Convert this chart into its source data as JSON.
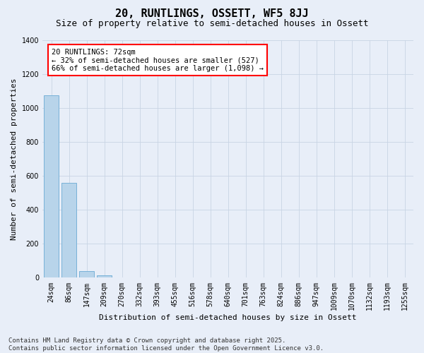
{
  "title": "20, RUNTLINGS, OSSETT, WF5 8JJ",
  "subtitle": "Size of property relative to semi-detached houses in Ossett",
  "xlabel": "Distribution of semi-detached houses by size in Ossett",
  "ylabel": "Number of semi-detached properties",
  "bar_color": "#b8d4ea",
  "bar_edge_color": "#6aaad4",
  "background_color": "#e8eef8",
  "grid_color": "#c8d4e4",
  "categories": [
    "24sqm",
    "86sqm",
    "147sqm",
    "209sqm",
    "270sqm",
    "332sqm",
    "393sqm",
    "455sqm",
    "516sqm",
    "578sqm",
    "640sqm",
    "701sqm",
    "763sqm",
    "824sqm",
    "886sqm",
    "947sqm",
    "1009sqm",
    "1070sqm",
    "1132sqm",
    "1193sqm",
    "1255sqm"
  ],
  "values": [
    1075,
    557,
    38,
    15,
    2,
    0,
    0,
    0,
    0,
    0,
    0,
    0,
    0,
    0,
    0,
    0,
    0,
    0,
    0,
    0,
    0
  ],
  "ylim": [
    0,
    1400
  ],
  "yticks": [
    0,
    200,
    400,
    600,
    800,
    1000,
    1200,
    1400
  ],
  "property_label": "20 RUNTLINGS: 72sqm",
  "annotation_line1": "← 32% of semi-detached houses are smaller (527)",
  "annotation_line2": "66% of semi-detached houses are larger (1,098) →",
  "footer_line1": "Contains HM Land Registry data © Crown copyright and database right 2025.",
  "footer_line2": "Contains public sector information licensed under the Open Government Licence v3.0.",
  "title_fontsize": 11,
  "subtitle_fontsize": 9,
  "axis_label_fontsize": 8,
  "tick_fontsize": 7,
  "annotation_fontsize": 7.5,
  "footer_fontsize": 6.5
}
